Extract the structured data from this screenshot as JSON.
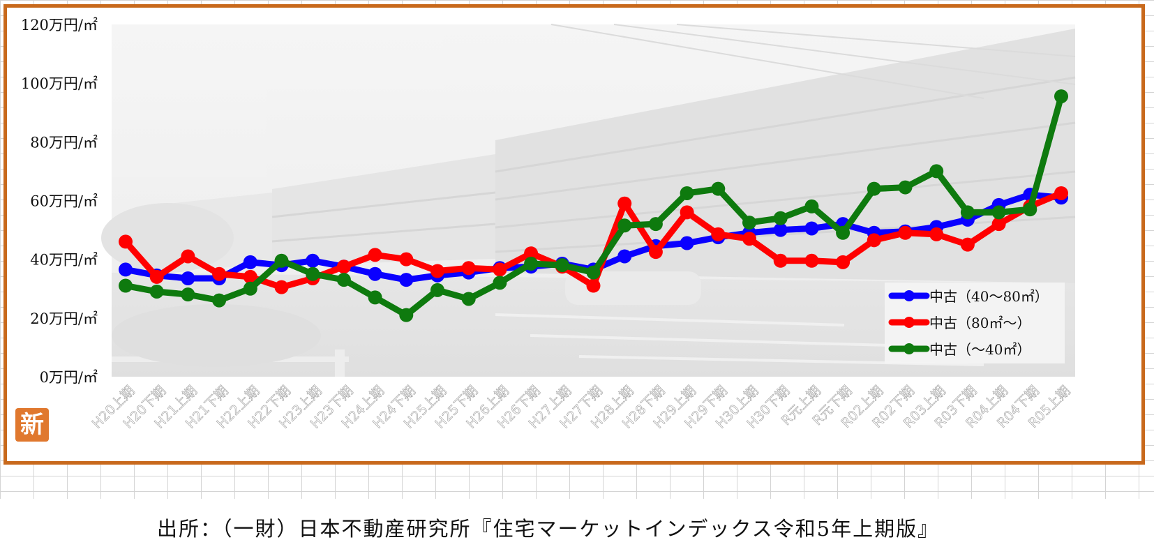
{
  "chart_data": {
    "type": "line",
    "title": "",
    "xlabel": "",
    "ylabel": "",
    "ylim": [
      0,
      120
    ],
    "y_ticks": [
      0,
      20,
      40,
      60,
      80,
      100,
      120
    ],
    "y_tick_labels": [
      "0万円/㎡",
      "20万円/㎡",
      "40万円/㎡",
      "60万円/㎡",
      "80万円/㎡",
      "100万円/㎡",
      "120万円/㎡"
    ],
    "categories": [
      "H20上期",
      "H20下期",
      "H21上期",
      "H21下期",
      "H22上期",
      "H22下期",
      "H23上期",
      "H23下期",
      "H24上期",
      "H24下期",
      "H25上期",
      "H25下期",
      "H26上期",
      "H26下期",
      "H27上期",
      "H27下期",
      "H28上期",
      "H28下期",
      "H29上期",
      "H29下期",
      "H30上期",
      "H30下期",
      "R元上期",
      "R元下期",
      "R02上期",
      "R02下期",
      "R03上期",
      "R03下期",
      "R04上期",
      "R04下期",
      "R05上期"
    ],
    "grid": false,
    "legend_position": "bottom-right",
    "series": [
      {
        "name": "中古（40～80㎡）",
        "color": "#0a00ff",
        "values": [
          36.5,
          34.5,
          33.5,
          33.5,
          39,
          38,
          39.5,
          37.5,
          35,
          33,
          34.5,
          35.5,
          37,
          37.5,
          38.5,
          36.5,
          41,
          44.5,
          45.5,
          47.5,
          49,
          50,
          50.5,
          52,
          49,
          49.5,
          51,
          53.5,
          58.5,
          62,
          61
        ]
      },
      {
        "name": "中古（80㎡～）",
        "color": "#ff0000",
        "values": [
          46,
          34,
          41,
          35,
          34,
          30.5,
          33.5,
          37.5,
          41.5,
          40,
          36,
          37,
          36.5,
          42,
          37.5,
          31,
          59,
          42.5,
          56,
          48.5,
          47,
          39.5,
          39.5,
          39,
          46.5,
          49,
          48.5,
          45,
          52,
          58,
          62.5
        ]
      },
      {
        "name": "中古（～40㎡）",
        "color": "#0e7a0e",
        "values": [
          31,
          29,
          28,
          26,
          30,
          39.5,
          35,
          33,
          27,
          21,
          29.5,
          26.5,
          32,
          38.5,
          38,
          35.5,
          51.5,
          52,
          62.5,
          64,
          52.5,
          54,
          58,
          49,
          64,
          64.5,
          70,
          56,
          56,
          57,
          95.5
        ]
      }
    ]
  },
  "watermark_badge": "新",
  "source_text": "出所：（一財）日本不動産研究所『住宅マーケットインデックス令和5年上期版』"
}
